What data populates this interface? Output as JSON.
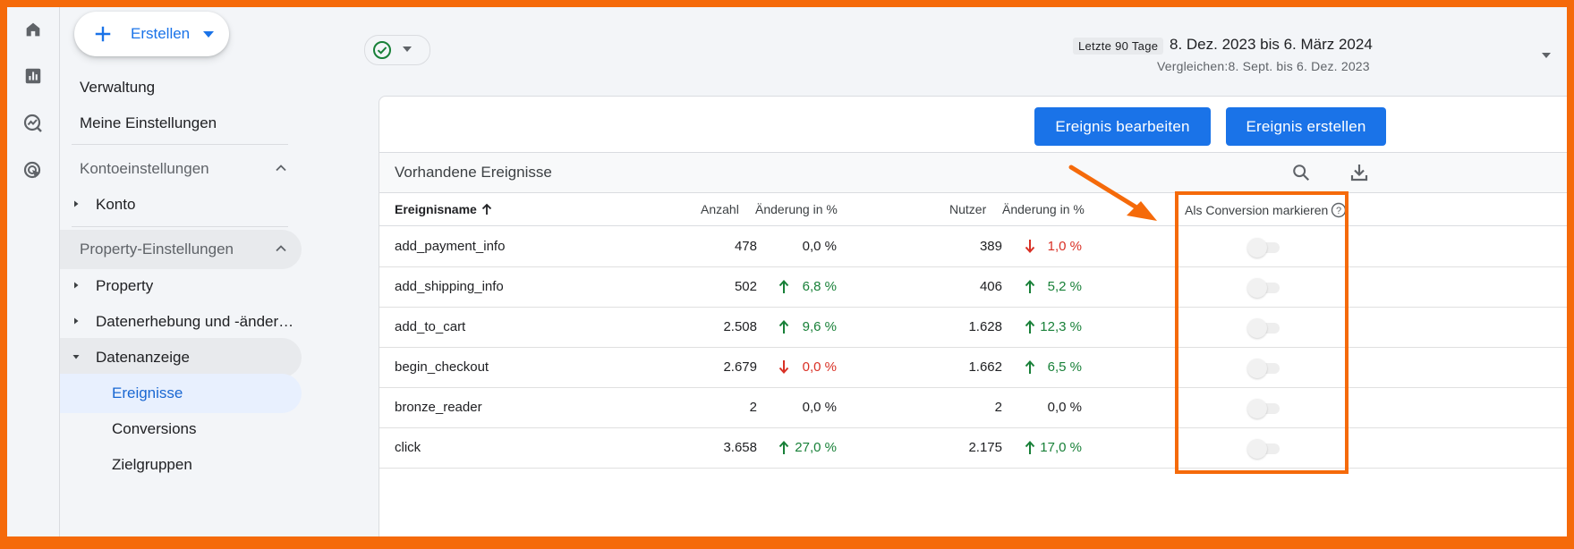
{
  "create_button": {
    "label": "Erstellen"
  },
  "sidebar": {
    "links": [
      "Verwaltung",
      "Meine Einstellungen"
    ],
    "sections": [
      {
        "label": "Kontoeinstellungen",
        "items": [
          {
            "label": "Konto"
          }
        ]
      },
      {
        "label": "Property-Einstellungen",
        "items": [
          {
            "label": "Property"
          },
          {
            "label": "Datenerhebung und -änderu…"
          },
          {
            "label": "Datenanzeige",
            "expanded": true
          }
        ]
      }
    ],
    "sub_items": [
      "Ereignisse",
      "Conversions",
      "Zielgruppen"
    ],
    "selected_sub_item": "Ereignisse"
  },
  "rail_icons": [
    "home-icon",
    "reports-icon",
    "explore-icon",
    "advertising-icon"
  ],
  "date": {
    "chip": "Letzte 90 Tage",
    "range": "8. Dez. 2023 bis 6. März 2024",
    "compare": "Vergleichen:8. Sept. bis 6. Dez. 2023"
  },
  "actions": {
    "edit_event": "Ereignis bearbeiten",
    "create_event": "Ereignis erstellen"
  },
  "table": {
    "title": "Vorhandene Ereignisse",
    "columns": {
      "name": "Ereignisname",
      "count": "Anzahl",
      "count_change": "Änderung in %",
      "users": "Nutzer",
      "users_change": "Änderung in %",
      "conversion": "Als Conversion markieren"
    },
    "rows": [
      {
        "name": "add_payment_info",
        "count": "478",
        "count_change": "0,0 %",
        "count_trend": "none",
        "users": "389",
        "users_change": "1,0 %",
        "users_trend": "down"
      },
      {
        "name": "add_shipping_info",
        "count": "502",
        "count_change": "6,8 %",
        "count_trend": "up",
        "users": "406",
        "users_change": "5,2 %",
        "users_trend": "up"
      },
      {
        "name": "add_to_cart",
        "count": "2.508",
        "count_change": "9,6 %",
        "count_trend": "up",
        "users": "1.628",
        "users_change": "12,3 %",
        "users_trend": "up"
      },
      {
        "name": "begin_checkout",
        "count": "2.679",
        "count_change": "0,0 %",
        "count_trend": "down",
        "users": "1.662",
        "users_change": "6,5 %",
        "users_trend": "up"
      },
      {
        "name": "bronze_reader",
        "count": "2",
        "count_change": "0,0 %",
        "count_trend": "none",
        "users": "2",
        "users_change": "0,0 %",
        "users_trend": "none"
      },
      {
        "name": "click",
        "count": "3.658",
        "count_change": "27,0 %",
        "count_trend": "up",
        "users": "2.175",
        "users_change": "17,0 %",
        "users_trend": "up"
      }
    ]
  },
  "colors": {
    "accent": "#1a73e8",
    "positive": "#188038",
    "negative": "#d93025",
    "annotation": "#f56a0a"
  }
}
